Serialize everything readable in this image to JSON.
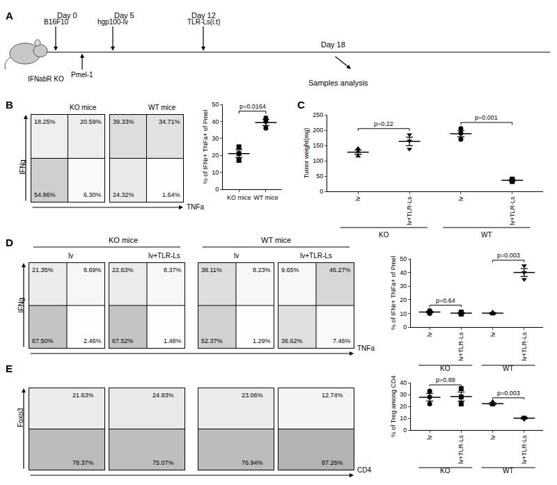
{
  "timeline": {
    "panel": "A",
    "mouse": "IFNabR KO",
    "events": [
      {
        "label": "Day 0",
        "detail": "B16F10"
      },
      {
        "detail": "Pmel-1"
      },
      {
        "label": "Day 5",
        "detail": "hgp100-lv"
      },
      {
        "label": "Day 12",
        "detail": "TLR-Ls(i.t)"
      },
      {
        "label": "Day 18",
        "detail": "Samples analysis"
      }
    ]
  },
  "chart_data": [
    {
      "type": "quadrant",
      "panel": "B",
      "x_label": "TNFa",
      "y_label": "IFNg",
      "tick_labels": false,
      "groups": [
        {
          "plots": [
            {
              "title": "KO mice",
              "values": [
                [
                  18.25,
                  20.59
                ],
                [
                  54.86,
                  6.3
                ]
              ],
              "value_labels": [
                [
                  "18.25%",
                  "20.59%"
                ],
                [
                  "54.86%",
                  "6.30%"
                ]
              ]
            },
            {
              "title": "WT mice",
              "values": [
                [
                  39.33,
                  34.71
                ],
                [
                  24.32,
                  1.64
                ]
              ],
              "value_labels": [
                [
                  "39.33%",
                  "34.71%"
                ],
                [
                  "24.32%",
                  "1.64%"
                ]
              ]
            }
          ]
        }
      ]
    },
    {
      "type": "scatter",
      "y_label": "% of IFNr+ TNFa+ of Pmel",
      "ylim": [
        0,
        50
      ],
      "yticks": [
        0,
        10,
        20,
        30,
        40,
        50
      ],
      "groups": [
        {
          "p": "p=0.0164",
          "categories": [
            {
              "label": "KO mice",
              "marker": "square",
              "values": [
                25,
                21,
                17
              ],
              "mean": 21,
              "error": 2.3
            },
            {
              "label": "WT mice",
              "marker": "circle",
              "values": [
                42,
                40,
                36
              ],
              "mean": 39.3,
              "error": 1.8
            }
          ]
        }
      ]
    },
    {
      "type": "scatter",
      "panel": "C",
      "y_label": "Tumor weight(mg)",
      "ylim": [
        0,
        250
      ],
      "yticks": [
        0,
        50,
        100,
        150,
        200,
        250
      ],
      "groups": [
        {
          "name": "KO",
          "p": "p=0.22",
          "categories": [
            {
              "label": "lv",
              "marker": "triangle-up",
              "values": [
                140,
                130,
                115
              ],
              "mean": 128,
              "error": 7
            },
            {
              "label": "lv+TLR-Ls",
              "marker": "triangle-down",
              "values": [
                185,
                165,
                138
              ],
              "mean": 163,
              "error": 14
            }
          ]
        },
        {
          "name": "WT",
          "p": "p=0.001",
          "categories": [
            {
              "label": "lv",
              "marker": "circle",
              "values": [
                205,
                190,
                170
              ],
              "mean": 188,
              "error": 10
            },
            {
              "label": "lv+TLR-Ls",
              "marker": "square",
              "values": [
                40,
                35,
                32
              ],
              "mean": 36,
              "error": 2.3
            }
          ]
        }
      ]
    },
    {
      "type": "quadrant",
      "panel": "D",
      "x_label": "TNFa",
      "y_label": "IFNg",
      "tick_labels": false,
      "groups": [
        {
          "name": "KO mice",
          "plots": [
            {
              "title": "lv",
              "values": [
                [
                  21.35,
                  8.69
                ],
                [
                  67.5,
                  2.46
                ]
              ],
              "value_labels": [
                [
                  "21.35%",
                  "8.69%"
                ],
                [
                  "67.50%",
                  "2.46%"
                ]
              ]
            },
            {
              "title": "lv+TLR-Ls",
              "values": [
                [
                  22.63,
                  8.37
                ],
                [
                  67.52,
                  1.48
                ]
              ],
              "value_labels": [
                [
                  "22.63%",
                  "8.37%"
                ],
                [
                  "67.52%",
                  "1.48%"
                ]
              ]
            }
          ]
        },
        {
          "name": "WT mice",
          "plots": [
            {
              "title": "lv",
              "values": [
                [
                  38.11,
                  8.23
                ],
                [
                  52.37,
                  1.29
                ]
              ],
              "value_labels": [
                [
                  "38.11%",
                  "8.23%"
                ],
                [
                  "52.37%",
                  "1.29%"
                ]
              ]
            },
            {
              "title": "lv+TLR-Ls",
              "values": [
                [
                  9.65,
                  46.27
                ],
                [
                  36.62,
                  7.46
                ]
              ],
              "value_labels": [
                [
                  "9.65%",
                  "46.27%"
                ],
                [
                  "36.62%",
                  "7.46%"
                ]
              ]
            }
          ]
        }
      ]
    },
    {
      "type": "scatter",
      "y_label": "% of IFNr+ TNFa+ of Pmel",
      "ylim": [
        0,
        50
      ],
      "yticks": [
        0,
        10,
        20,
        30,
        40,
        50
      ],
      "groups": [
        {
          "name": "KO",
          "p": "p=0.64",
          "categories": [
            {
              "label": "lv",
              "marker": "circle",
              "values": [
                12,
                11,
                10
              ],
              "mean": 11,
              "error": 0.6
            },
            {
              "label": "lv+TLR-Ls",
              "marker": "square",
              "values": [
                11,
                10,
                9.5
              ],
              "mean": 10.2,
              "error": 0.5
            }
          ]
        },
        {
          "name": "WT",
          "p": "p=0.003",
          "categories": [
            {
              "label": "lv",
              "marker": "triangle-up",
              "values": [
                11,
                10,
                9.5
              ],
              "mean": 10.2,
              "error": 0.5
            },
            {
              "label": "lv+TLR-Ls",
              "marker": "triangle-down",
              "values": [
                45,
                40,
                35
              ],
              "mean": 40,
              "error": 2.9
            }
          ]
        }
      ]
    },
    {
      "type": "quadrant",
      "panel": "E",
      "x_label": "CD4",
      "y_label": "Foxp3",
      "tick_labels": false,
      "groups": [
        {
          "plots": [
            {
              "values": [
                [
                  21.63
                ],
                [
                  78.37
                ]
              ],
              "value_labels": [
                [
                  "21.63%"
                ],
                [
                  "78.37%"
                ]
              ]
            },
            {
              "values": [
                [
                  24.93
                ],
                [
                  75.07
                ]
              ],
              "value_labels": [
                [
                  "24.93%"
                ],
                [
                  "75.07%"
                ]
              ]
            },
            {
              "values": [
                [
                  23.06
                ],
                [
                  76.94
                ]
              ],
              "value_labels": [
                [
                  "23.06%"
                ],
                [
                  "76.94%"
                ]
              ]
            },
            {
              "values": [
                [
                  12.74
                ],
                [
                  87.26
                ]
              ],
              "value_labels": [
                [
                  "12.74%"
                ],
                [
                  "87.26%"
                ]
              ]
            }
          ]
        }
      ]
    },
    {
      "type": "scatter",
      "y_label": "% of Treg among CD4",
      "ylim": [
        0,
        40
      ],
      "yticks": [
        0,
        10,
        20,
        30,
        40
      ],
      "groups": [
        {
          "name": "KO",
          "p": "p=0.89",
          "categories": [
            {
              "label": "lv",
              "marker": "circle",
              "values": [
                33,
                28,
                22
              ],
              "mean": 27.7,
              "error": 3.2
            },
            {
              "label": "lv+TLR-Ls",
              "marker": "square",
              "values": [
                35,
                28,
                22
              ],
              "mean": 28.3,
              "error": 3.8
            }
          ]
        },
        {
          "name": "WT",
          "p": "p=0.003",
          "categories": [
            {
              "label": "lv",
              "marker": "triangle-up",
              "values": [
                24,
                22,
                21
              ],
              "mean": 22.3,
              "error": 0.9
            },
            {
              "label": "lv+TLR-Ls",
              "marker": "triangle-down",
              "values": [
                11,
                10,
                9
              ],
              "mean": 10,
              "error": 0.6
            }
          ]
        }
      ]
    }
  ]
}
